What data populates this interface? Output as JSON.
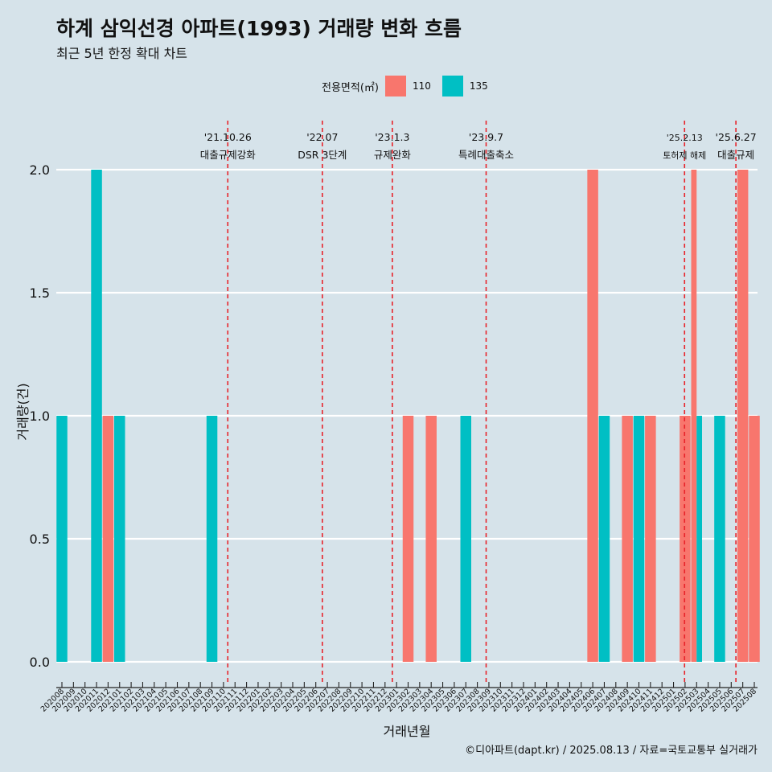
{
  "title": "하계 삼익선경 아파트(1993) 거래량 변화 흐름",
  "subtitle": "최근 5년 한정 확대 차트",
  "caption": "©디아파트(dapt.kr) / 2025.08.13 / 자료=국토교통부 실거래가",
  "legend": {
    "title": "전용면적(㎡)",
    "entries": [
      {
        "label": "110",
        "color": "#f8766d"
      },
      {
        "label": "135",
        "color": "#00bfc4"
      }
    ]
  },
  "colors": {
    "110": "#f8766d",
    "135": "#00bfc4",
    "grid": "#ffffff",
    "background": "#d6e3ea",
    "event_line": "#e8232a"
  },
  "chart_data": {
    "type": "bar",
    "xlabel": "거래년월",
    "ylabel": "거래량(건)",
    "ylim": [
      0,
      2
    ],
    "yticks": [
      "0.0",
      "0.5",
      "1.0",
      "1.5",
      "2.0"
    ],
    "grid": true,
    "legend_position": "top",
    "categories": [
      "202008",
      "202009",
      "202010",
      "202011",
      "202012",
      "202101",
      "202102",
      "202103",
      "202104",
      "202105",
      "202106",
      "202107",
      "202108",
      "202109",
      "202110",
      "202111",
      "202112",
      "202201",
      "202202",
      "202203",
      "202204",
      "202205",
      "202206",
      "202207",
      "202208",
      "202209",
      "202210",
      "202211",
      "202212",
      "202301",
      "202302",
      "202303",
      "202304",
      "202305",
      "202306",
      "202307",
      "202308",
      "202309",
      "202310",
      "202311",
      "202312",
      "202401",
      "202402",
      "202403",
      "202404",
      "202405",
      "202406",
      "202407",
      "202408",
      "202409",
      "202410",
      "202411",
      "202412",
      "202501",
      "202502",
      "202503",
      "202504",
      "202505",
      "202506",
      "202507",
      "202508"
    ],
    "series": [
      {
        "name": "110",
        "points": [
          {
            "x": "202012",
            "y": 1
          },
          {
            "x": "202302",
            "y": 1
          },
          {
            "x": "202304",
            "y": 1
          },
          {
            "x": "202406",
            "y": 2
          },
          {
            "x": "202409",
            "y": 1
          },
          {
            "x": "202411",
            "y": 1
          },
          {
            "x": "202502",
            "y": 1
          },
          {
            "x": "202503",
            "y": 2
          },
          {
            "x": "202507",
            "y": 2
          },
          {
            "x": "202508",
            "y": 1
          }
        ]
      },
      {
        "name": "135",
        "points": [
          {
            "x": "202008",
            "y": 1
          },
          {
            "x": "202011",
            "y": 2
          },
          {
            "x": "202101",
            "y": 1
          },
          {
            "x": "202109",
            "y": 1
          },
          {
            "x": "202307",
            "y": 1
          },
          {
            "x": "202407",
            "y": 1
          },
          {
            "x": "202410",
            "y": 1
          },
          {
            "x": "202503",
            "y": 1
          },
          {
            "x": "202505",
            "y": 1
          }
        ]
      }
    ],
    "events": [
      {
        "date": "'21.10.26",
        "label": "대출규제강화",
        "month": "202110",
        "day": 26
      },
      {
        "date": "'22.07",
        "label": "DSR 3단계",
        "month": "202207",
        "day": 1
      },
      {
        "date": "'23.1.3",
        "label": "규제완화",
        "month": "202301",
        "day": 3
      },
      {
        "date": "'23.9.7",
        "label": "특례대출축소",
        "month": "202309",
        "day": 7
      },
      {
        "date": "'25.2.13",
        "label": "토허제 해제",
        "month": "202502",
        "day": 13
      },
      {
        "date": "'25.6.27",
        "label": "대출규제",
        "month": "202506",
        "day": 27
      }
    ]
  }
}
